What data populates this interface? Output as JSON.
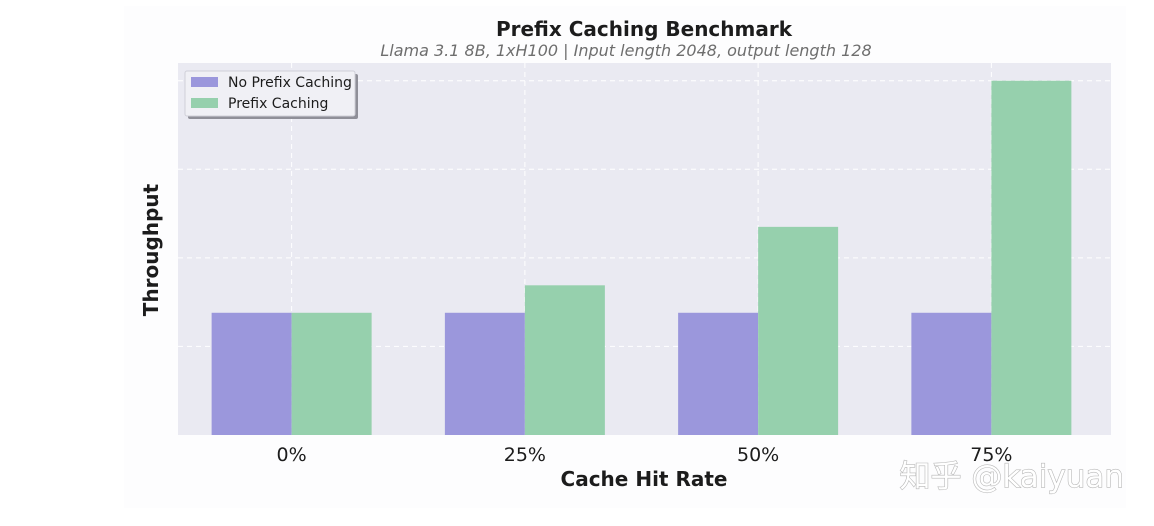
{
  "chart_data": {
    "type": "bar",
    "title": "Prefix Caching Benchmark",
    "subtitle": "Llama 3.1 8B, 1xH100 | Input length 2048, output length 128",
    "xlabel": "Cache Hit Rate",
    "ylabel": "Throughput",
    "categories": [
      "0%",
      "25%",
      "50%",
      "75%"
    ],
    "series": [
      {
        "name": "No Prefix Caching",
        "color": "#9b97dc",
        "values": [
          1.38,
          1.38,
          1.38,
          1.38
        ]
      },
      {
        "name": "Prefix Caching",
        "color": "#96d0ad",
        "values": [
          1.38,
          1.69,
          2.35,
          4.0
        ]
      }
    ],
    "ylim": [
      0,
      4.2
    ],
    "yticks": [
      1,
      2,
      3,
      4
    ],
    "show_ytick_labels": false,
    "grid": true,
    "legend": "top-left"
  },
  "watermark": {
    "text": "知乎 @kaiyuan"
  }
}
